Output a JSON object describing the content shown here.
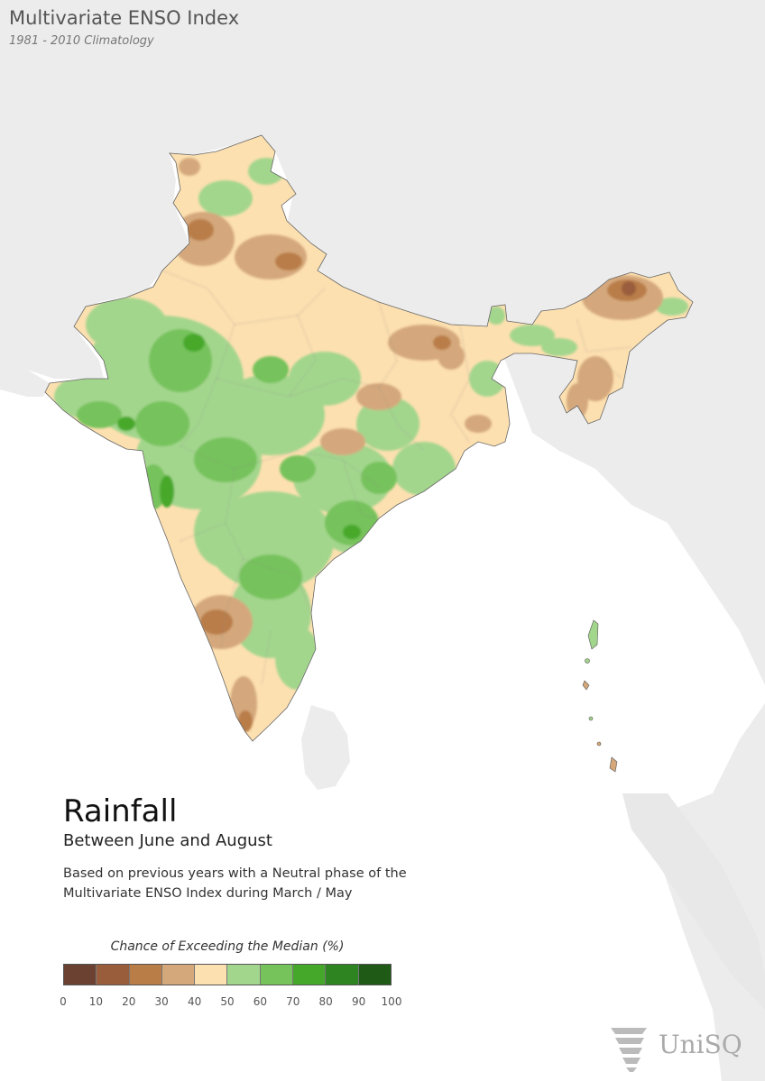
{
  "header": {
    "title": "Multivariate ENSO Index",
    "subtitle": "1981 - 2010 Climatology"
  },
  "main": {
    "title": "Rainfall",
    "subtitle": "Between June and August",
    "description": "Based on previous years with a Neutral phase of the Multivariate ENSO Index during March / May"
  },
  "legend": {
    "title": "Chance of Exceeding the Median (%)",
    "colors": [
      "#6b4232",
      "#9a5d3c",
      "#b97d48",
      "#d4a87b",
      "#fde0b0",
      "#a3d68d",
      "#76c25b",
      "#46a82b",
      "#2e8421",
      "#1f5b16"
    ],
    "ticks": [
      "0",
      "10",
      "20",
      "30",
      "40",
      "50",
      "60",
      "70",
      "80",
      "90",
      "100"
    ]
  },
  "logo": {
    "text": "UniSQ"
  },
  "map_colors": {
    "background_land": "#ececec",
    "sea": "#ffffff",
    "base": "#fde0b0",
    "green_light": "#a3d68d",
    "green_mid": "#76c25b",
    "green_dark": "#46a82b",
    "brown_light": "#d4a87b",
    "brown_mid": "#b97d48",
    "brown_dark": "#9a5d3c"
  }
}
